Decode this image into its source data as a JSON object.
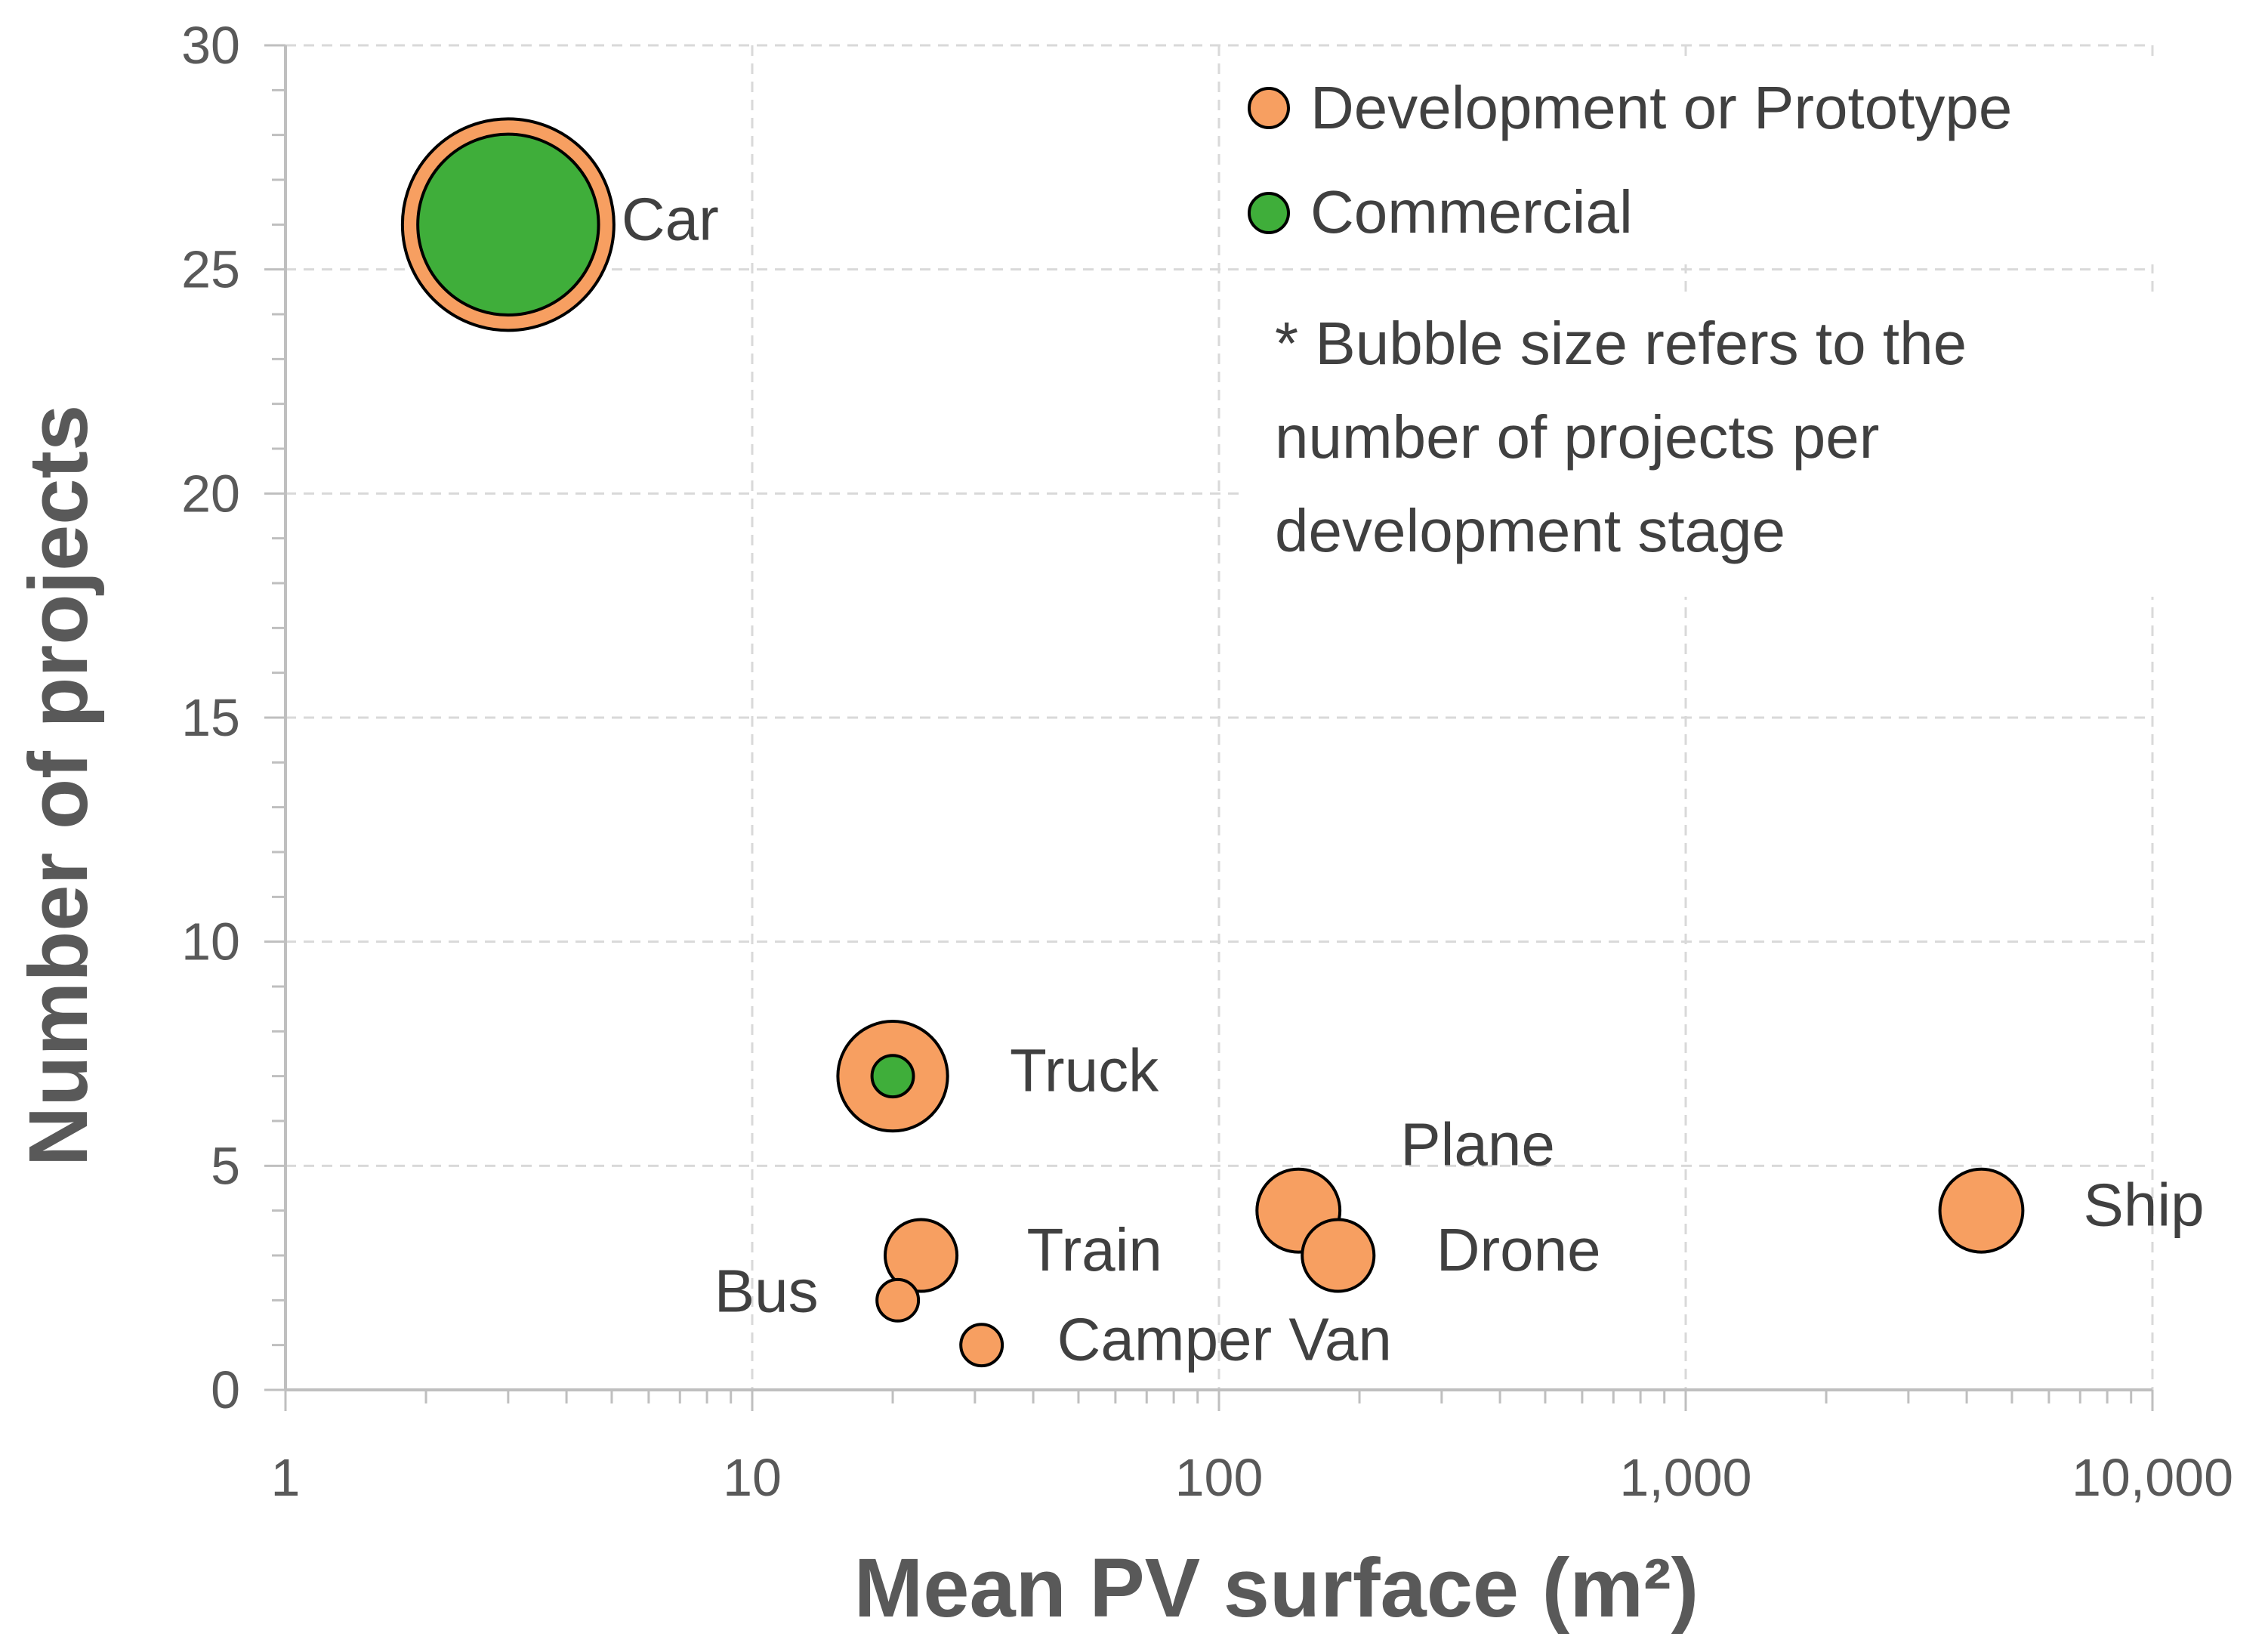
{
  "chart_data": {
    "type": "scatter",
    "variant": "bubble",
    "xscale": "log",
    "xlim": [
      1,
      10000
    ],
    "ylim": [
      0,
      30
    ],
    "xlabel": "Mean PV surface (m²)",
    "ylabel": "Number of projects",
    "xticks": [
      "1",
      "10",
      "100",
      "1,000",
      "10,000"
    ],
    "yticks": [
      "0",
      "5",
      "10",
      "15",
      "20",
      "25",
      "30"
    ],
    "grid": true,
    "legend_position": "top-right",
    "note": [
      "* Bubble size refers to the",
      "number of projects per",
      "development stage"
    ],
    "series": [
      {
        "name": "Development or Prototype",
        "color": "#F79F61",
        "points": [
          {
            "label": "Car",
            "x": 3,
            "y": 26,
            "size": 26
          },
          {
            "label": "Truck",
            "x": 20,
            "y": 7,
            "size": 7
          },
          {
            "label": "Train",
            "x": 23,
            "y": 3,
            "size": 3
          },
          {
            "label": "Bus",
            "x": 20.5,
            "y": 2,
            "size": 1
          },
          {
            "label": "Camper Van",
            "x": 31,
            "y": 1,
            "size": 1
          },
          {
            "label": "Plane",
            "x": 148,
            "y": 4,
            "size": 4
          },
          {
            "label": "Drone",
            "x": 180,
            "y": 3,
            "size": 3
          },
          {
            "label": "Ship",
            "x": 4300,
            "y": 4,
            "size": 4
          }
        ]
      },
      {
        "name": "Commercial",
        "color": "#3FAE3A",
        "points": [
          {
            "label": "Car",
            "x": 3,
            "y": 26,
            "size": 19
          },
          {
            "label": "Truck",
            "x": 20,
            "y": 7,
            "size": 1
          }
        ]
      }
    ]
  }
}
